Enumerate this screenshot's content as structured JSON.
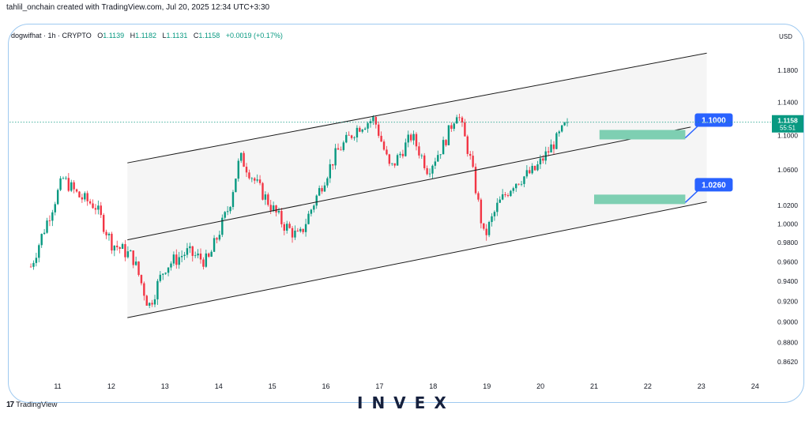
{
  "header": {
    "attribution": "tahlil_onchain created with TradingView.com, Jul 20, 2025 12:34 UTC+3:30"
  },
  "legend": {
    "symbol": "dogwifhat · 1h · CRYPTO",
    "o_label": "O",
    "o": "1.1139",
    "h_label": "H",
    "h": "1.1182",
    "l_label": "L",
    "l": "1.1131",
    "c_label": "C",
    "c": "1.1158",
    "change": "+0.0019 (+0.17%)"
  },
  "footer": {
    "tradingview_label": "TradingView",
    "brand_name": "INVEX"
  },
  "colors": {
    "up": "#089981",
    "down": "#f23645",
    "price_line": "#089981",
    "label_blue": "#2962ff",
    "zone": "#7ecfb2",
    "channel_fill": "#f5f5f5",
    "frame": "#9ec9f0"
  },
  "chart_data": {
    "type": "candlestick",
    "currency": "USD",
    "price_axis_ticks": [
      "1.1800",
      "1.1400",
      "1.1000",
      "1.0600",
      "1.0200",
      "1.0000",
      "0.9800",
      "0.9600",
      "0.9400",
      "0.9200",
      "0.9000",
      "0.8800",
      "0.8620"
    ],
    "time_axis_ticks": [
      "11",
      "12",
      "13",
      "14",
      "15",
      "16",
      "17",
      "18",
      "19",
      "20",
      "21",
      "22",
      "23",
      "24"
    ],
    "last_price": "1.1158",
    "countdown": "55:51",
    "closes": [
      {
        "day": 10.5,
        "close": 0.955
      },
      {
        "day": 11.1,
        "close": 1.05
      },
      {
        "day": 11.4,
        "close": 1.03
      },
      {
        "day": 11.7,
        "close": 1.02
      },
      {
        "day": 12.0,
        "close": 0.98
      },
      {
        "day": 12.4,
        "close": 0.965
      },
      {
        "day": 12.7,
        "close": 0.915
      },
      {
        "day": 13.0,
        "close": 0.955
      },
      {
        "day": 13.4,
        "close": 0.97
      },
      {
        "day": 13.8,
        "close": 0.96
      },
      {
        "day": 14.2,
        "close": 1.02
      },
      {
        "day": 14.4,
        "close": 1.075
      },
      {
        "day": 14.8,
        "close": 1.035
      },
      {
        "day": 15.2,
        "close": 1.0
      },
      {
        "day": 15.5,
        "close": 0.985
      },
      {
        "day": 15.9,
        "close": 1.04
      },
      {
        "day": 16.2,
        "close": 1.08
      },
      {
        "day": 16.6,
        "close": 1.11
      },
      {
        "day": 16.9,
        "close": 1.12
      },
      {
        "day": 17.2,
        "close": 1.06
      },
      {
        "day": 17.6,
        "close": 1.1
      },
      {
        "day": 17.9,
        "close": 1.06
      },
      {
        "day": 18.2,
        "close": 1.09
      },
      {
        "day": 18.45,
        "close": 1.13
      },
      {
        "day": 18.7,
        "close": 1.07
      },
      {
        "day": 18.95,
        "close": 0.985
      },
      {
        "day": 19.2,
        "close": 1.02
      },
      {
        "day": 19.5,
        "close": 1.045
      },
      {
        "day": 19.9,
        "close": 1.06
      },
      {
        "day": 20.3,
        "close": 1.095
      },
      {
        "day": 20.5,
        "close": 1.1158
      }
    ],
    "channel": {
      "upper": [
        {
          "day": 12.3,
          "price": 1.068
        },
        {
          "day": 23.1,
          "price": 1.202
        }
      ],
      "middle": [
        {
          "day": 12.3,
          "price": 0.983
        },
        {
          "day": 22.8,
          "price": 1.11
        }
      ],
      "lower": [
        {
          "day": 12.3,
          "price": 0.904
        },
        {
          "day": 23.1,
          "price": 1.024
        }
      ]
    },
    "target_zones": [
      {
        "label": "1.1000",
        "price": 1.1,
        "from_day": 21.1,
        "to_day": 22.7
      },
      {
        "label": "1.0260",
        "price": 1.026,
        "from_day": 21.0,
        "to_day": 22.7
      }
    ]
  }
}
